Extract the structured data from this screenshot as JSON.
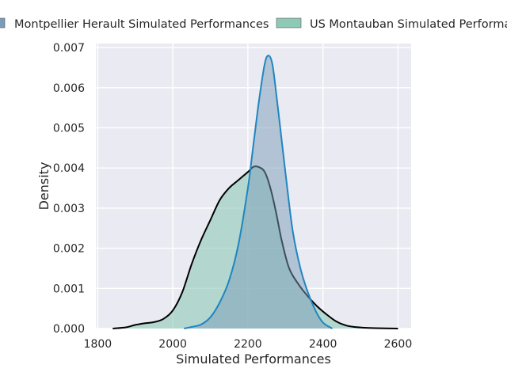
{
  "chart_data": {
    "type": "area",
    "xlabel": "Simulated Performances",
    "ylabel": "Density",
    "xlim": [
      1795,
      2635
    ],
    "ylim": [
      0,
      0.0071
    ],
    "x_ticks": [
      1800,
      2000,
      2200,
      2400,
      2600
    ],
    "x_tick_labels": [
      "1800",
      "2000",
      "2200",
      "2400",
      "2600"
    ],
    "y_ticks": [
      0,
      0.001,
      0.002,
      0.003,
      0.004,
      0.005,
      0.006,
      0.007
    ],
    "y_tick_labels": [
      "0.000",
      "0.001",
      "0.002",
      "0.003",
      "0.004",
      "0.005",
      "0.006",
      "0.007"
    ],
    "grid": true,
    "legend_position": "top",
    "series": [
      {
        "name": "Montpellier Herault Simulated Performances",
        "fill_color": "#7a9cb8",
        "line_color": "#1f86c0",
        "x": [
          2030,
          2050,
          2075,
          2100,
          2125,
          2150,
          2175,
          2200,
          2215,
          2230,
          2245,
          2255,
          2265,
          2275,
          2290,
          2305,
          2320,
          2340,
          2360,
          2380,
          2400,
          2425
        ],
        "y": [
          0.0,
          4e-05,
          0.0001,
          0.00028,
          0.00065,
          0.0012,
          0.0021,
          0.0035,
          0.0046,
          0.0057,
          0.0066,
          0.0068,
          0.0066,
          0.0059,
          0.0047,
          0.0035,
          0.0024,
          0.0015,
          0.0009,
          0.00045,
          0.00015,
          0.0
        ]
      },
      {
        "name": "US Montauban Simulated Performances",
        "fill_color": "#8ec9b6",
        "line_color": "#000000",
        "x": [
          1840,
          1875,
          1900,
          1925,
          1950,
          1975,
          2000,
          2025,
          2050,
          2075,
          2100,
          2125,
          2150,
          2175,
          2200,
          2215,
          2230,
          2245,
          2260,
          2275,
          2290,
          2310,
          2335,
          2360,
          2385,
          2410,
          2435,
          2460,
          2485,
          2510,
          2540,
          2600
        ],
        "y": [
          0.0,
          3e-05,
          9e-05,
          0.00013,
          0.00016,
          0.00024,
          0.00045,
          0.0009,
          0.0016,
          0.0022,
          0.0027,
          0.0032,
          0.0035,
          0.0037,
          0.0039,
          0.00403,
          0.00402,
          0.0039,
          0.0035,
          0.0029,
          0.0022,
          0.0015,
          0.0011,
          0.0008,
          0.00055,
          0.00035,
          0.00018,
          8e-05,
          4e-05,
          2e-05,
          1e-05,
          0.0
        ]
      }
    ]
  }
}
